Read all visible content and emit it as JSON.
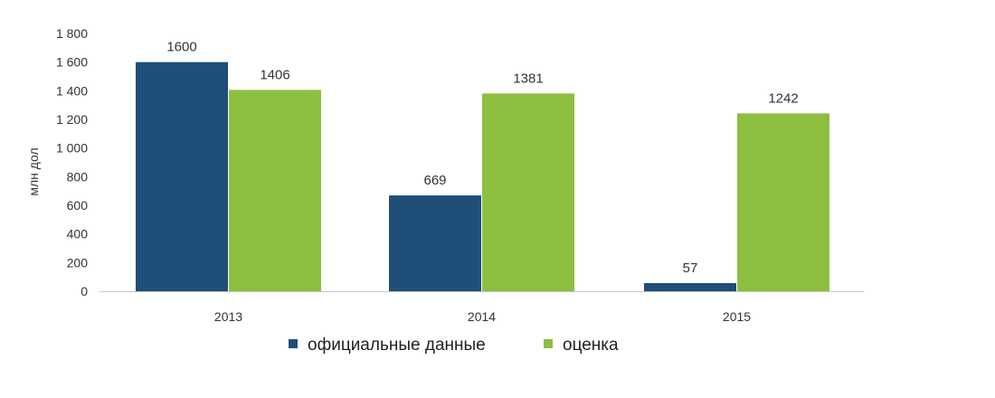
{
  "chart_data": {
    "type": "bar",
    "categories": [
      "2013",
      "2014",
      "2015"
    ],
    "series": [
      {
        "name": "официальные данные",
        "values": [
          1600,
          669,
          57
        ],
        "color": "#1f4e79"
      },
      {
        "name": "оценка",
        "values": [
          1406,
          1381,
          1242
        ],
        "color": "#8dbf3f"
      }
    ],
    "ylabel": "млн дол",
    "xlabel": "",
    "ylim": [
      0,
      1800
    ],
    "yticks": [
      0,
      200,
      400,
      600,
      800,
      1000,
      1200,
      1400,
      1600,
      1800
    ],
    "ytick_labels": [
      "0",
      "200",
      "400",
      "600",
      "800",
      "1 000",
      "1 200",
      "1 400",
      "1 600",
      "1 800"
    ],
    "grid": false,
    "legend_position": "bottom"
  },
  "colors": {
    "axis": "#c8c8c8"
  }
}
